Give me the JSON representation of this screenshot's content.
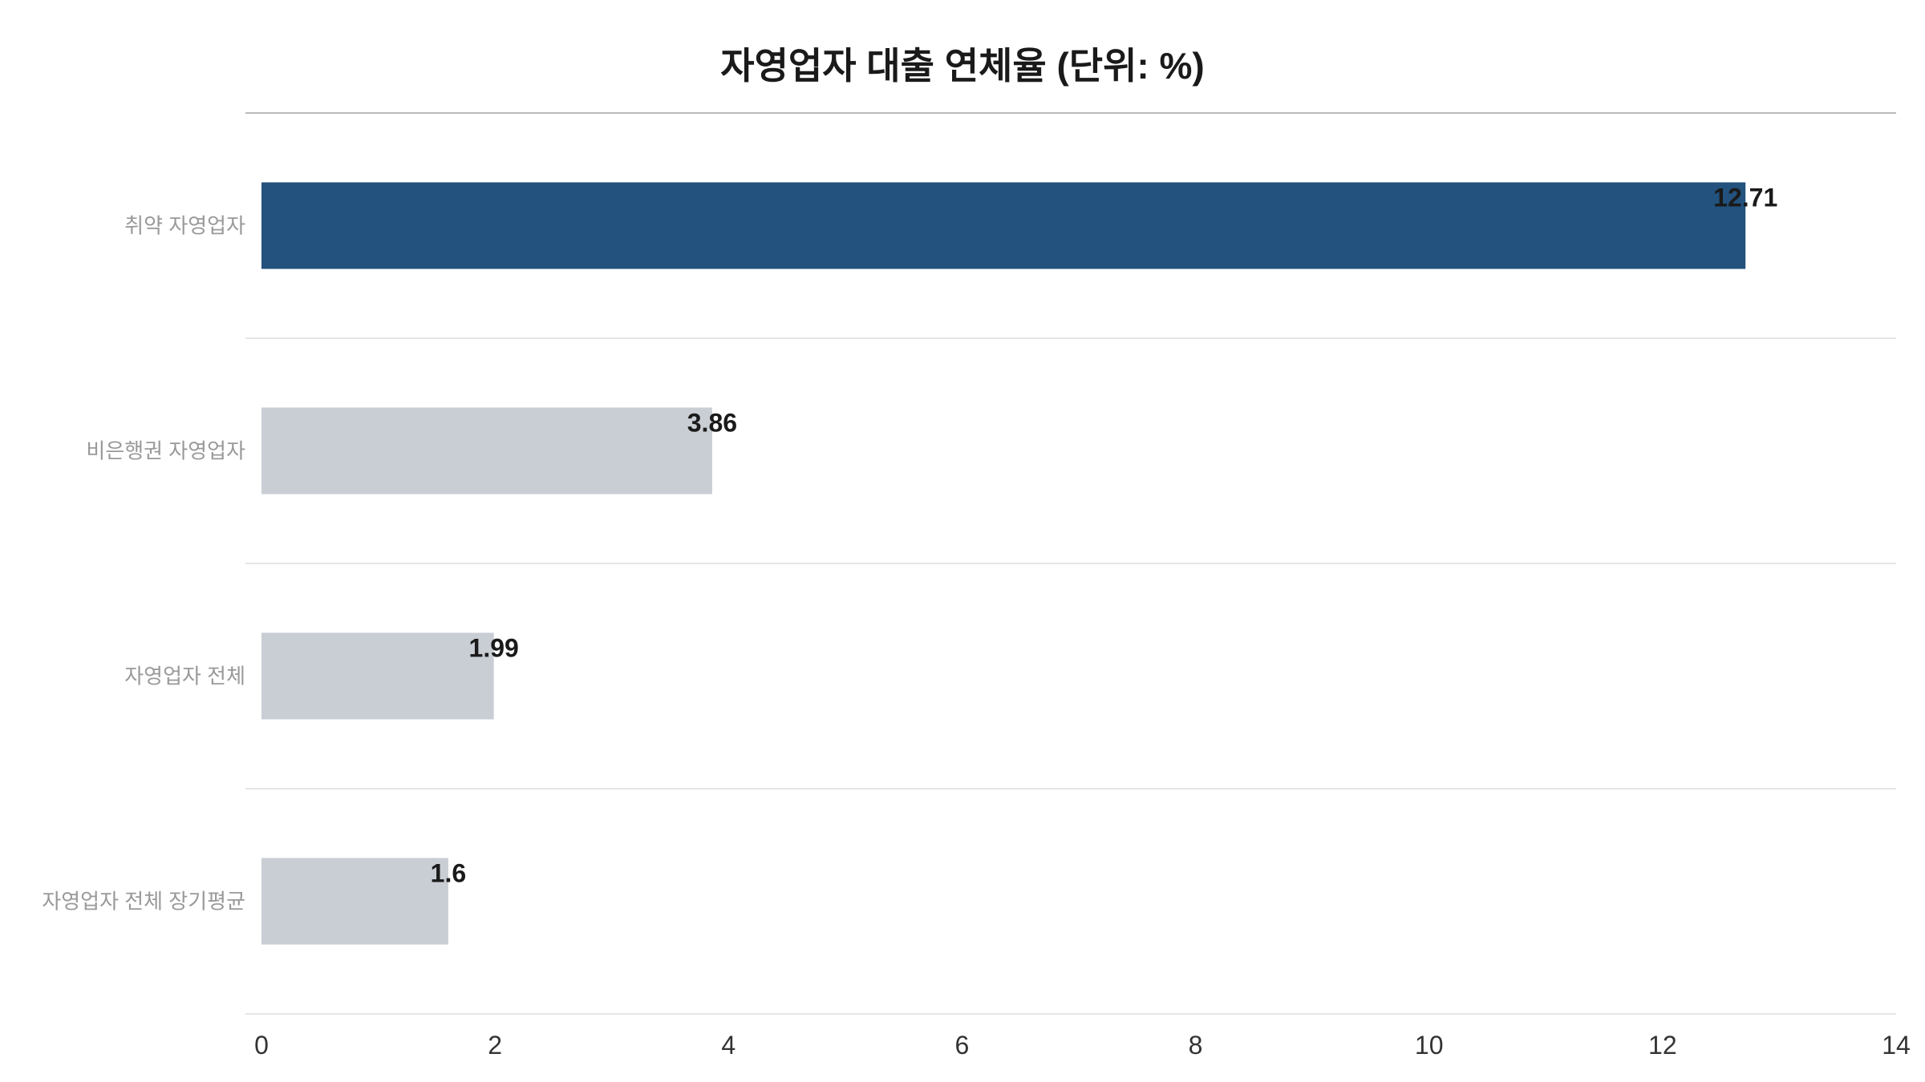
{
  "chart_data": {
    "type": "bar",
    "orientation": "horizontal",
    "title": "자영업자 대출 연체율 (단위: %)",
    "categories": [
      "취약 자영업자",
      "비은행권 자영업자",
      "자영업자 전체",
      "자영업자 전체 장기평균"
    ],
    "values": [
      12.71,
      3.86,
      1.99,
      1.6
    ],
    "value_labels": [
      "12.71",
      "3.86",
      "1.99",
      "1.6"
    ],
    "xlim": [
      0,
      14
    ],
    "xticks": [
      "0",
      "2",
      "4",
      "6",
      "8",
      "10",
      "12",
      "14"
    ],
    "xlabel": "",
    "ylabel": "",
    "grid": "horizontal separators",
    "colors": {
      "highlight": "#22527d",
      "default": "#c9cdd4",
      "separator": "#e6e6e6",
      "title_rule": "#bbbbbb"
    }
  }
}
